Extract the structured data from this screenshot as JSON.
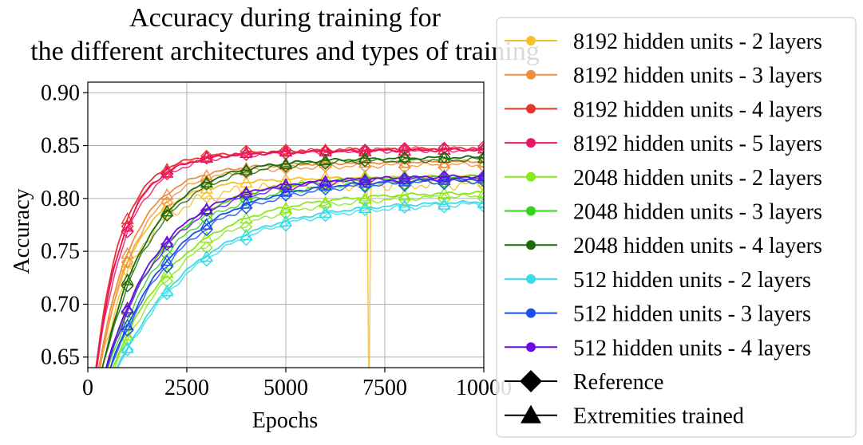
{
  "chart_data": {
    "type": "line",
    "title": "Accuracy during training for\nthe different architectures and types of training",
    "xlabel": "Epochs",
    "ylabel": "Accuracy",
    "xlim": [
      0,
      10000
    ],
    "ylim": [
      0.64,
      0.91
    ],
    "xticks": [
      0,
      2500,
      5000,
      7500,
      10000
    ],
    "xtick_labels": [
      "0",
      "2500",
      "5000",
      "7500",
      "10000"
    ],
    "yticks": [
      0.65,
      0.7,
      0.75,
      0.8,
      0.85,
      0.9
    ],
    "ytick_labels": [
      "0.65",
      "0.70",
      "0.75",
      "0.80",
      "0.85",
      "0.90"
    ],
    "grid": true,
    "legend_position": "right, outside plot area",
    "marker_x": [
      1000,
      2000,
      3000,
      4000,
      5000,
      6000,
      7000,
      8000,
      9000,
      10000
    ],
    "series": [
      {
        "name": "8192 hidden units - 2 layers",
        "color": "#f5c02a",
        "ref_final": 0.815,
        "ref_rate": 900,
        "ext_final": 0.822,
        "ext_rate": 850,
        "drop": {
          "x": 7100,
          "y": 0.6
        }
      },
      {
        "name": "8192 hidden units - 3 layers",
        "color": "#ee9040",
        "ref_final": 0.833,
        "ref_rate": 900,
        "ext_final": 0.836,
        "ext_rate": 850
      },
      {
        "name": "8192 hidden units - 4 layers",
        "color": "#e8362d",
        "ref_final": 0.848,
        "ref_rate": 700,
        "ext_final": 0.848,
        "ext_rate": 650
      },
      {
        "name": "8192 hidden units - 5 layers",
        "color": "#ec1464",
        "ref_final": 0.847,
        "ref_rate": 750,
        "ext_final": 0.847,
        "ext_rate": 700
      },
      {
        "name": "2048 hidden units - 2 layers",
        "color": "#8ce81a",
        "ref_final": 0.804,
        "ref_rate": 1800,
        "ext_final": 0.807,
        "ext_rate": 1700
      },
      {
        "name": "2048 hidden units - 3 layers",
        "color": "#33d41a",
        "ref_final": 0.818,
        "ref_rate": 1500,
        "ext_final": 0.822,
        "ext_rate": 1400
      },
      {
        "name": "2048 hidden units - 4 layers",
        "color": "#1c6b0a",
        "ref_final": 0.838,
        "ref_rate": 1200,
        "ext_final": 0.84,
        "ext_rate": 1150
      },
      {
        "name": "512 hidden units - 2 layers",
        "color": "#3bdbe8",
        "ref_final": 0.797,
        "ref_rate": 2000,
        "ext_final": 0.799,
        "ext_rate": 1950
      },
      {
        "name": "512 hidden units - 3 layers",
        "color": "#1a4fee",
        "ref_final": 0.818,
        "ref_rate": 1700,
        "ext_final": 0.82,
        "ext_rate": 1650
      },
      {
        "name": "512 hidden units - 4 layers",
        "color": "#6a0ae8",
        "ref_final": 0.82,
        "ref_rate": 1400,
        "ext_final": 0.822,
        "ext_rate": 1350
      }
    ],
    "marker_legend": [
      {
        "name": "Reference",
        "marker": "diamond"
      },
      {
        "name": "Extremities trained",
        "marker": "triangle"
      }
    ]
  }
}
